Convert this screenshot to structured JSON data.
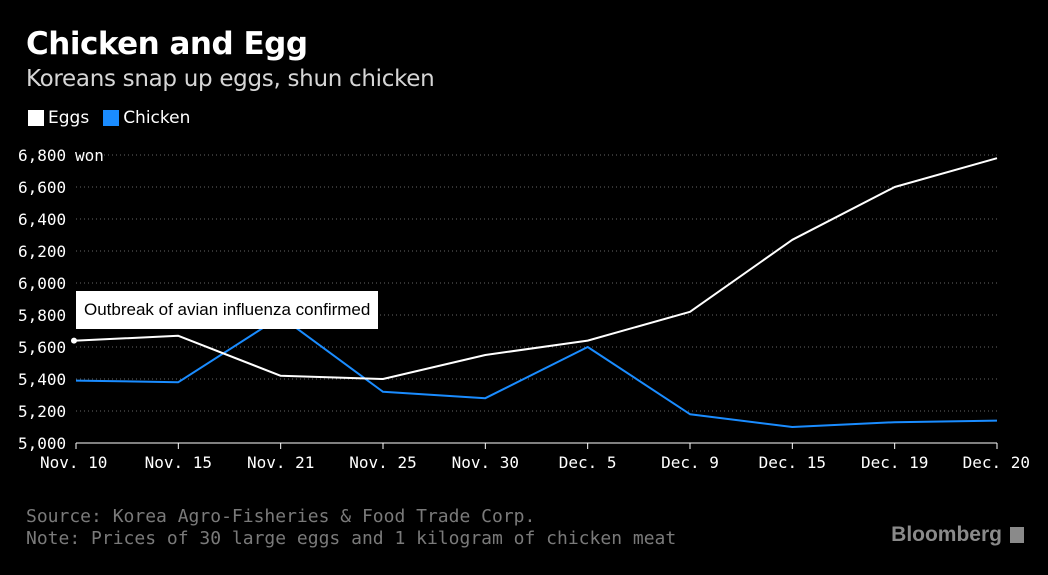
{
  "title": "Chicken and Egg",
  "subtitle": "Koreans snap up eggs, shun chicken",
  "legend": [
    {
      "label": "Eggs",
      "color": "#ffffff"
    },
    {
      "label": "Chicken",
      "color": "#1a8cff"
    }
  ],
  "annotation": "Outbreak of avian influenza confirmed",
  "source_lines": [
    "Source: Korea Agro-Fisheries & Food Trade Corp.",
    "Note: Prices of 30 large eggs and 1 kilogram of chicken meat"
  ],
  "brand": "Bloomberg",
  "chart_data": {
    "type": "line",
    "categories": [
      "Nov. 10",
      "Nov. 15",
      "Nov. 21",
      "Nov. 25",
      "Nov. 30",
      "Dec. 5",
      "Dec. 9",
      "Dec. 15",
      "Dec. 19",
      "Dec. 20"
    ],
    "series": [
      {
        "name": "Eggs",
        "color": "#ffffff",
        "values": [
          5640,
          5670,
          5420,
          5400,
          5550,
          5640,
          5820,
          6270,
          6600,
          6780
        ]
      },
      {
        "name": "Chicken",
        "color": "#1a8cff",
        "values": [
          5390,
          5380,
          5790,
          5320,
          5280,
          5600,
          5180,
          5100,
          5130,
          5140
        ]
      }
    ],
    "ylim": [
      5000,
      6800
    ],
    "yticks": [
      5000,
      5200,
      5400,
      5600,
      5800,
      6000,
      6200,
      6400,
      6600,
      6800
    ],
    "ytick_labels": [
      "5,000",
      "5,200",
      "5,400",
      "5,600",
      "5,800",
      "6,000",
      "6,200",
      "6,400",
      "6,600",
      "6,800"
    ],
    "yunit": "won",
    "grid": true
  }
}
